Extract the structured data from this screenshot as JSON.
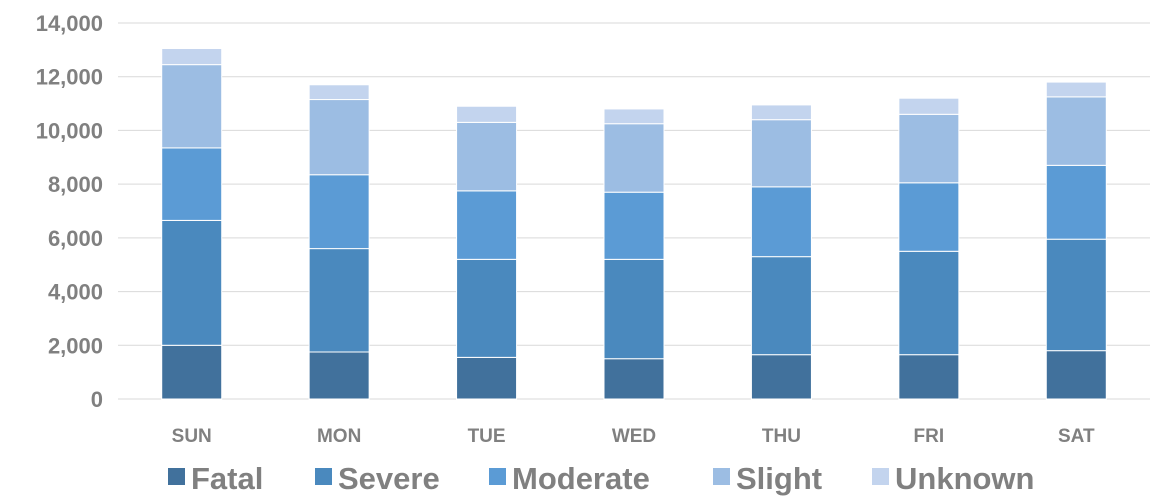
{
  "chart_data": {
    "type": "bar",
    "stacked": true,
    "title": "",
    "xlabel": "",
    "ylabel": "",
    "ylim": [
      0,
      14000
    ],
    "yticks": [
      0,
      2000,
      4000,
      6000,
      8000,
      10000,
      12000,
      14000
    ],
    "ytick_labels": [
      "0",
      "2,000",
      "4,000",
      "6,000",
      "8,000",
      "10,000",
      "12,000",
      "14,000"
    ],
    "grid": true,
    "legend_position": "bottom",
    "categories": [
      "SUN",
      "MON",
      "TUE",
      "WED",
      "THU",
      "FRI",
      "SAT"
    ],
    "series": [
      {
        "name": "Fatal",
        "color": "#41719c",
        "values": [
          2000,
          1750,
          1550,
          1500,
          1650,
          1650,
          1800
        ]
      },
      {
        "name": "Severe",
        "color": "#4a89be",
        "values": [
          4650,
          3850,
          3650,
          3700,
          3650,
          3850,
          4150
        ]
      },
      {
        "name": "Moderate",
        "color": "#5b9bd5",
        "values": [
          2700,
          2750,
          2550,
          2500,
          2600,
          2550,
          2750
        ]
      },
      {
        "name": "Slight",
        "color": "#9cbde3",
        "values": [
          3100,
          2800,
          2550,
          2550,
          2500,
          2550,
          2550
        ]
      },
      {
        "name": "Unknown",
        "color": "#c3d4ee",
        "values": [
          600,
          550,
          600,
          550,
          550,
          600,
          550
        ]
      }
    ]
  }
}
